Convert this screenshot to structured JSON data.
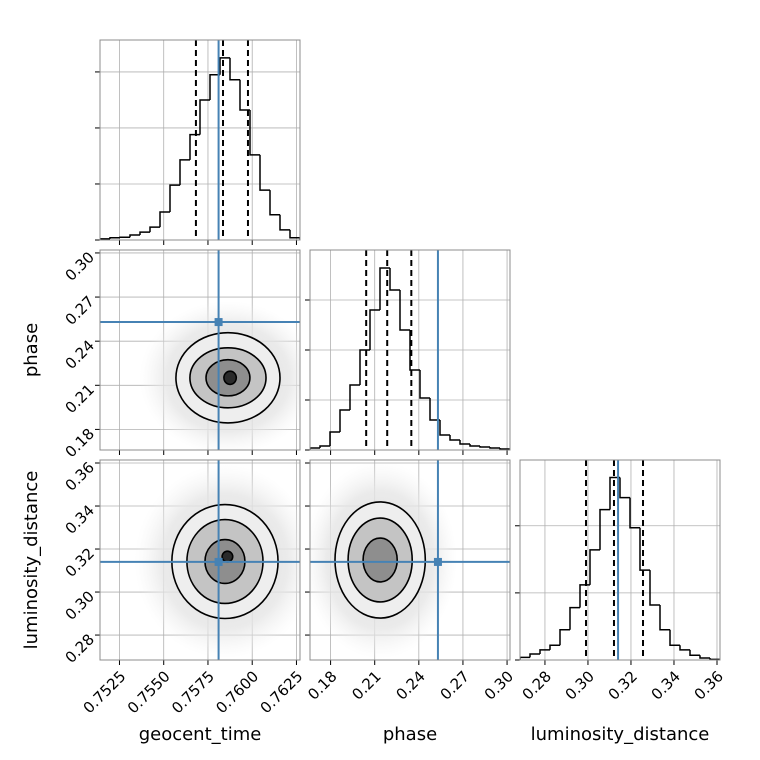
{
  "chart_data": {
    "type": "corner",
    "grid": true,
    "color": "#000000",
    "truth_color": "#4682b4",
    "parameters": [
      {
        "name": "geocent_time",
        "lim": [
          0.7514,
          0.7627
        ],
        "ticks": [
          0.7525,
          {
            "value": 0.755,
            "label": "0.7550"
          },
          0.7575,
          {
            "value": 0.76,
            "label": "0.7600"
          },
          0.7625
        ],
        "truth": 0.7581,
        "bins": [
          0.7514,
          0.751965,
          0.75253,
          0.753095,
          0.75366,
          0.754225,
          0.75479,
          0.755355,
          0.75592,
          0.756485,
          0.75705,
          0.757615,
          0.75818,
          0.758745,
          0.75931,
          0.759875,
          0.76044,
          0.761005,
          0.76157,
          0.762135,
          0.7627
        ],
        "counts": [
          2,
          4,
          5,
          9,
          14,
          23,
          50,
          98,
          143,
          188,
          250,
          295,
          325,
          286,
          232,
          152,
          89,
          45,
          18,
          4
        ],
        "hist_ylim": [
          0,
          357
        ],
        "hist_yticks": [
          0,
          100,
          200,
          300
        ],
        "quantiles": [
          0.75682,
          0.75835,
          0.75976
        ]
      },
      {
        "name": "phase",
        "lim": [
          0.166,
          0.302
        ],
        "ticks": [
          0.18,
          0.21,
          0.24,
          0.27,
          {
            "value": 0.3,
            "label": "0.30"
          }
        ],
        "truth": 0.253,
        "bins": [
          0.166,
          0.1728,
          0.1796,
          0.1864,
          0.1932,
          0.2,
          0.2068,
          0.2136,
          0.2204,
          0.2272,
          0.234,
          0.2408,
          0.2476,
          0.2544,
          0.2612,
          0.268,
          0.2748,
          0.2816,
          0.2884,
          0.2952,
          0.302
        ],
        "counts": [
          4,
          8,
          36,
          80,
          130,
          200,
          280,
          364,
          320,
          240,
          160,
          104,
          60,
          30,
          20,
          12,
          8,
          6,
          4,
          2
        ],
        "hist_ylim": [
          0,
          400
        ],
        "hist_yticks": [
          0,
          100,
          200,
          300
        ],
        "quantiles": [
          0.2042,
          0.2185,
          0.2349
        ],
        "joint_contours": [
          [
            {
              "cx": 0.75863,
              "cy": 0.2151,
              "rx": 0.00294,
              "ry": 0.0307
            },
            {
              "cx": 0.75863,
              "cy": 0.2151,
              "rx": 0.00215,
              "ry": 0.0204
            },
            {
              "cx": 0.75863,
              "cy": 0.2151,
              "rx": 0.00124,
              "ry": 0.0123
            },
            {
              "cx": 0.75875,
              "cy": 0.2151,
              "rx": 0.00035,
              "ry": 0.0045
            }
          ]
        ]
      },
      {
        "name": "luminosity_distance",
        "lim": [
          0.2684,
          0.3614
        ],
        "ticks": [
          0.28,
          {
            "value": 0.3,
            "label": "0.30"
          },
          0.32,
          0.34,
          0.36
        ],
        "truth": 0.314,
        "bins": [
          0.2684,
          0.27305,
          0.2777,
          0.28235,
          0.287,
          0.29165,
          0.2963,
          0.30095,
          0.3056,
          0.31025,
          0.3149,
          0.31955,
          0.3242,
          0.32885,
          0.3335,
          0.33815,
          0.3428,
          0.34745,
          0.3521,
          0.35675,
          0.3614
        ],
        "counts": [
          4,
          9,
          15,
          22,
          45,
          78,
          112,
          164,
          224,
          272,
          242,
          197,
          134,
          82,
          45,
          22,
          15,
          7,
          3,
          1
        ],
        "hist_ylim": [
          0,
          298
        ],
        "hist_yticks": [
          0,
          100,
          200
        ],
        "quantiles": [
          0.2991,
          0.3121,
          0.3256
        ],
        "joint_contours": [
          [
            {
              "cx": 0.75846,
              "cy": 0.3142,
              "rx": 0.003,
              "ry": 0.0265
            },
            {
              "cx": 0.75846,
              "cy": 0.3142,
              "rx": 0.00215,
              "ry": 0.0195
            },
            {
              "cx": 0.75846,
              "cy": 0.3142,
              "rx": 0.00113,
              "ry": 0.0102
            },
            {
              "cx": 0.7586,
              "cy": 0.3165,
              "rx": 0.0003,
              "ry": 0.0025
            }
          ],
          [
            {
              "cx": 0.2137,
              "cy": 0.3149,
              "rx": 0.0307,
              "ry": 0.027
            },
            {
              "cx": 0.2137,
              "cy": 0.3149,
              "rx": 0.0218,
              "ry": 0.0195
            },
            {
              "cx": 0.2137,
              "cy": 0.3149,
              "rx": 0.0116,
              "ry": 0.0102
            }
          ]
        ]
      }
    ]
  }
}
